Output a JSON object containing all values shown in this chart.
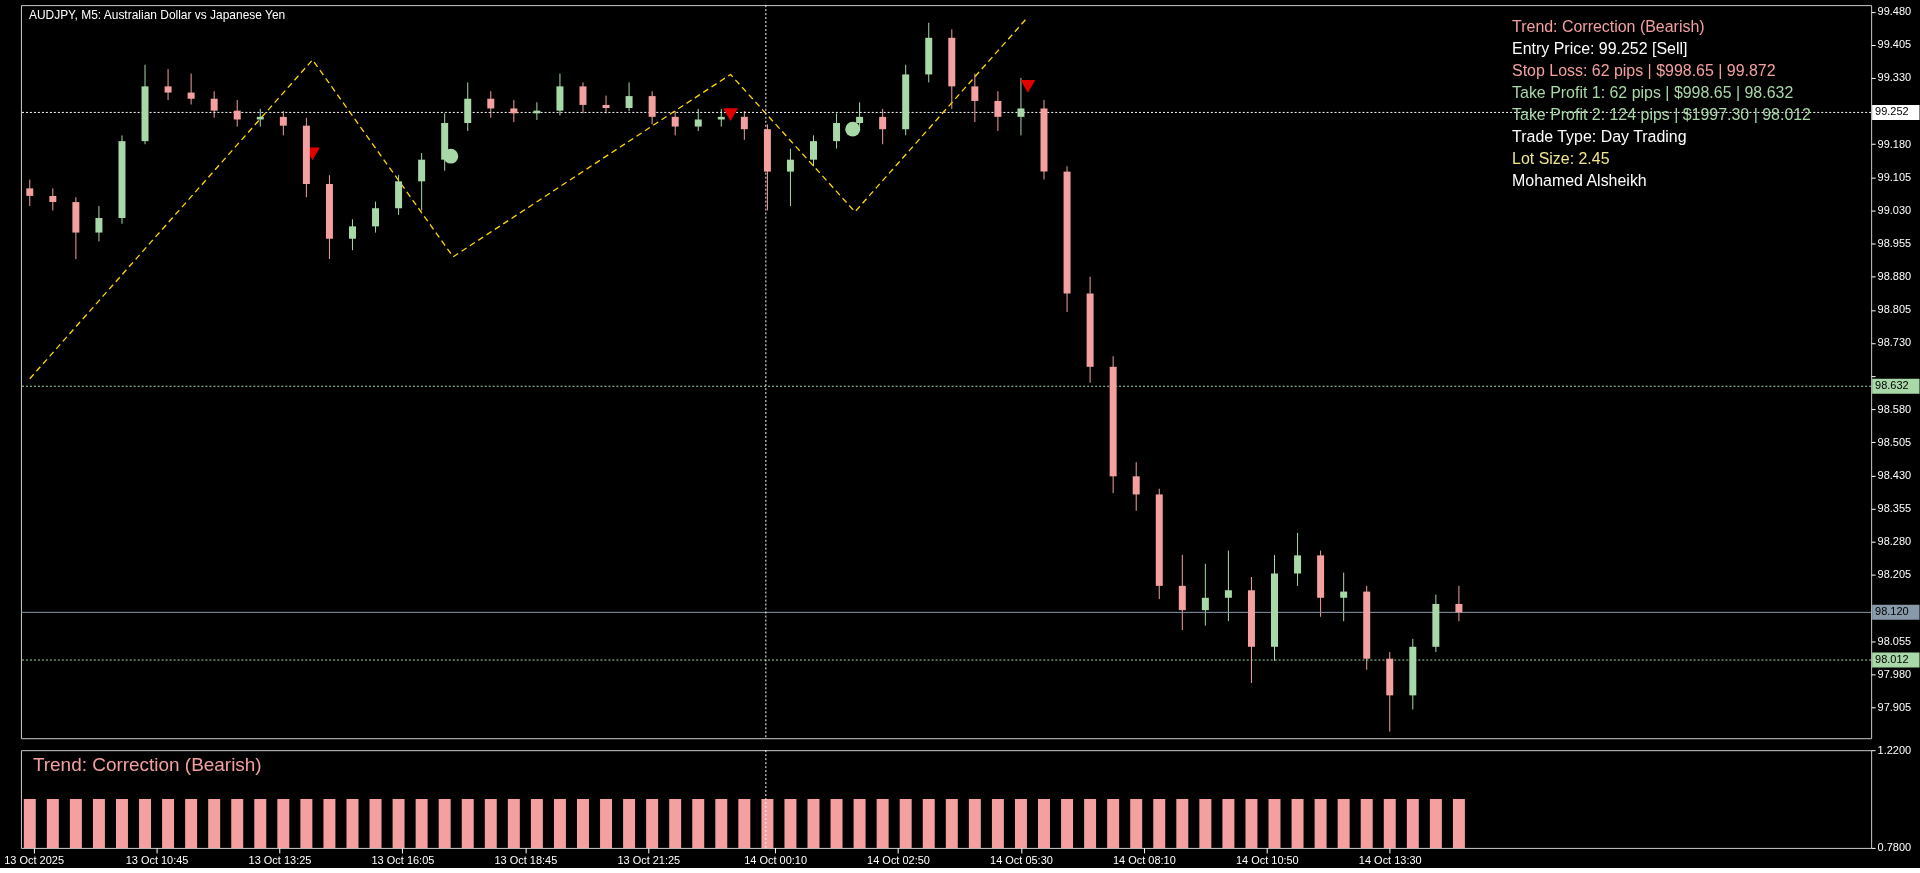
{
  "chart_data": [
    {
      "type": "candlestick",
      "title": "AUDJPY, M5:  Australian Dollar vs Japanese Yen",
      "x": [
        "2025-10-13T08:00",
        "2025-10-13T08:30",
        "2025-10-13T09:00",
        "2025-10-13T09:30",
        "2025-10-13T10:00",
        "2025-10-13T10:30",
        "2025-10-13T11:00",
        "2025-10-13T11:30",
        "2025-10-13T12:00",
        "2025-10-13T12:30",
        "2025-10-13T13:00",
        "2025-10-13T13:30",
        "2025-10-13T14:00",
        "2025-10-13T14:30",
        "2025-10-13T15:00",
        "2025-10-13T15:30",
        "2025-10-13T16:00",
        "2025-10-13T16:30",
        "2025-10-13T17:00",
        "2025-10-13T17:30",
        "2025-10-13T18:00",
        "2025-10-13T18:30",
        "2025-10-13T19:00",
        "2025-10-13T19:30",
        "2025-10-13T20:00",
        "2025-10-13T20:30",
        "2025-10-13T21:00",
        "2025-10-13T21:30",
        "2025-10-13T22:00",
        "2025-10-13T22:30",
        "2025-10-13T23:00",
        "2025-10-13T23:30",
        "2025-10-14T00:00",
        "2025-10-14T00:30",
        "2025-10-14T01:00",
        "2025-10-14T01:30",
        "2025-10-14T02:00",
        "2025-10-14T02:30",
        "2025-10-14T03:00",
        "2025-10-14T03:30",
        "2025-10-14T04:00",
        "2025-10-14T04:30",
        "2025-10-14T05:00",
        "2025-10-14T05:30",
        "2025-10-14T06:00",
        "2025-10-14T06:30",
        "2025-10-14T07:00",
        "2025-10-14T07:30",
        "2025-10-14T08:00",
        "2025-10-14T08:30",
        "2025-10-14T09:00",
        "2025-10-14T09:30",
        "2025-10-14T10:00",
        "2025-10-14T10:30",
        "2025-10-14T11:00",
        "2025-10-14T11:30",
        "2025-10-14T12:00",
        "2025-10-14T12:30",
        "2025-10-14T13:00",
        "2025-10-14T13:30",
        "2025-10-14T14:00",
        "2025-10-14T14:30",
        "2025-10-14T15:00"
      ],
      "ohlc": [
        [
          99.08,
          99.1,
          99.04,
          99.063
        ],
        [
          99.063,
          99.08,
          99.03,
          99.049
        ],
        [
          99.049,
          99.06,
          98.92,
          98.98
        ],
        [
          98.98,
          99.04,
          98.96,
          99.013
        ],
        [
          99.013,
          99.2,
          99.0,
          99.187
        ],
        [
          99.187,
          99.36,
          99.18,
          99.311
        ],
        [
          99.311,
          99.35,
          99.28,
          99.297
        ],
        [
          99.297,
          99.34,
          99.27,
          99.283
        ],
        [
          99.283,
          99.3,
          99.24,
          99.256
        ],
        [
          99.256,
          99.28,
          99.22,
          99.236
        ],
        [
          99.236,
          99.26,
          99.22,
          99.242
        ],
        [
          99.242,
          99.255,
          99.2,
          99.222
        ],
        [
          99.222,
          99.24,
          99.06,
          99.09
        ],
        [
          99.09,
          99.11,
          98.92,
          98.966
        ],
        [
          98.966,
          99.01,
          98.94,
          98.994
        ],
        [
          98.994,
          99.05,
          98.98,
          99.035
        ],
        [
          99.035,
          99.11,
          99.02,
          99.096
        ],
        [
          99.096,
          99.16,
          99.03,
          99.145
        ],
        [
          99.145,
          99.25,
          99.12,
          99.228
        ],
        [
          99.228,
          99.32,
          99.21,
          99.283
        ],
        [
          99.283,
          99.3,
          99.24,
          99.261
        ],
        [
          99.261,
          99.28,
          99.23,
          99.25
        ],
        [
          99.25,
          99.275,
          99.235,
          99.256
        ],
        [
          99.256,
          99.34,
          99.245,
          99.311
        ],
        [
          99.311,
          99.32,
          99.25,
          99.269
        ],
        [
          99.269,
          99.29,
          99.25,
          99.262
        ],
        [
          99.262,
          99.32,
          99.255,
          99.289
        ],
        [
          99.289,
          99.3,
          99.225,
          99.242
        ],
        [
          99.242,
          99.255,
          99.2,
          99.22
        ],
        [
          99.22,
          99.26,
          99.21,
          99.236
        ],
        [
          99.236,
          99.26,
          99.22,
          99.242
        ],
        [
          99.242,
          99.255,
          99.19,
          99.214
        ],
        [
          99.214,
          99.225,
          99.03,
          99.118
        ],
        [
          99.118,
          99.17,
          99.04,
          99.145
        ],
        [
          99.145,
          99.2,
          99.13,
          99.187
        ],
        [
          99.187,
          99.25,
          99.17,
          99.228
        ],
        [
          99.228,
          99.275,
          99.21,
          99.242
        ],
        [
          99.242,
          99.26,
          99.18,
          99.214
        ],
        [
          99.214,
          99.36,
          99.2,
          99.338
        ],
        [
          99.338,
          99.455,
          99.32,
          99.421
        ],
        [
          99.421,
          99.44,
          99.26,
          99.311
        ],
        [
          99.311,
          99.34,
          99.23,
          99.278
        ],
        [
          99.278,
          99.3,
          99.21,
          99.242
        ],
        [
          99.242,
          99.33,
          99.2,
          99.261
        ],
        [
          99.261,
          99.28,
          99.1,
          99.118
        ],
        [
          99.118,
          99.13,
          98.8,
          98.842
        ],
        [
          98.842,
          98.88,
          98.64,
          98.676
        ],
        [
          98.676,
          98.7,
          98.39,
          98.428
        ],
        [
          98.428,
          98.46,
          98.35,
          98.387
        ],
        [
          98.387,
          98.4,
          98.15,
          98.18
        ],
        [
          98.18,
          98.25,
          98.08,
          98.125
        ],
        [
          98.125,
          98.23,
          98.09,
          98.153
        ],
        [
          98.153,
          98.26,
          98.1,
          98.17
        ],
        [
          98.17,
          98.2,
          97.96,
          98.042
        ],
        [
          98.042,
          98.25,
          98.01,
          98.208
        ],
        [
          98.208,
          98.3,
          98.18,
          98.249
        ],
        [
          98.249,
          98.26,
          98.11,
          98.153
        ],
        [
          98.153,
          98.21,
          98.1,
          98.167
        ],
        [
          98.167,
          98.18,
          97.99,
          98.015
        ],
        [
          98.015,
          98.03,
          97.85,
          97.932
        ],
        [
          97.932,
          98.06,
          97.9,
          98.042
        ],
        [
          98.042,
          98.16,
          98.03,
          98.139
        ],
        [
          98.139,
          98.18,
          98.1,
          98.12
        ]
      ],
      "series": [
        {
          "type": "line",
          "color": "#ffd700",
          "line_style": "dashed",
          "x": [
            "2025-10-13T08:00",
            "2025-10-13T14:08",
            "2025-10-13T17:11",
            "2025-10-13T23:12",
            "2025-10-14T01:54",
            "2025-10-14T05:36"
          ],
          "values": [
            98.649,
            99.371,
            98.925,
            99.338,
            99.027,
            99.462
          ]
        },
        {
          "type": "scatter",
          "color": "#e00000",
          "marker": "triangle",
          "x": [
            "2025-10-13T14:08",
            "2025-10-13T23:12",
            "2025-10-14T05:39"
          ],
          "values": [
            99.158,
            99.247,
            99.311
          ]
        },
        {
          "type": "scatter",
          "color": "#a8d8a8",
          "marker": "circle",
          "x": [
            "2025-10-13T17:08",
            "2025-10-14T01:51"
          ],
          "values": [
            99.153,
            99.214
          ]
        }
      ],
      "xlim": [
        "2025-10-13T07:55",
        "2025-10-14T23:50"
      ],
      "ylim": [
        97.835,
        99.495
      ],
      "yticks": [
        {
          "value": 99.48,
          "label": "99.480"
        },
        {
          "value": 99.405,
          "label": "99.405"
        },
        {
          "value": 99.33,
          "label": "99.330"
        },
        {
          "value": 99.18,
          "label": "99.180"
        },
        {
          "value": 99.105,
          "label": "99.105"
        },
        {
          "value": 99.03,
          "label": "99.030"
        },
        {
          "value": 98.955,
          "label": "98.955"
        },
        {
          "value": 98.88,
          "label": "98.880"
        },
        {
          "value": 98.805,
          "label": "98.805"
        },
        {
          "value": 98.73,
          "label": "98.730"
        },
        {
          "value": 98.655,
          "label": null
        },
        {
          "value": 98.58,
          "label": "98.580"
        },
        {
          "value": 98.505,
          "label": "98.505"
        },
        {
          "value": 98.43,
          "label": "98.430"
        },
        {
          "value": 98.355,
          "label": "98.355"
        },
        {
          "value": 98.28,
          "label": "98.280"
        },
        {
          "value": 98.205,
          "label": "98.205"
        },
        {
          "value": 98.055,
          "label": "98.055"
        },
        {
          "value": 97.98,
          "label": "97.980"
        },
        {
          "value": 97.905,
          "label": "97.905"
        }
      ],
      "tick_labels": "y",
      "ref_lines": [
        {
          "axis": "y",
          "value": 99.252,
          "label": "99.252",
          "color": "#ffffff",
          "line_style": "dotted"
        },
        {
          "axis": "y",
          "value": 98.632,
          "label": "98.632",
          "color": "#a8d8a8",
          "line_style": "dotted"
        },
        {
          "axis": "y",
          "value": 98.12,
          "label": "98.120",
          "color": "#8899aa",
          "line_style": "solid"
        },
        {
          "axis": "y",
          "value": 98.012,
          "label": "98.012",
          "color": "#a8d8a8",
          "line_style": "dotted"
        },
        {
          "axis": "x",
          "value": "2025-10-13T23:58",
          "color": "#ffffff",
          "line_style": "dotted"
        }
      ],
      "annotations": [
        "Trend: Correction (Bearish)",
        "Entry Price: 99.252 [Sell]",
        "Stop Loss: 62 pips | $998.65 | 99.872",
        "Take Profit 1: 62 pips | $998.65 | 98.632",
        "Take Profit 2: 124 pips | $1997.30 | 98.012",
        "Trade Type: Day Trading",
        "Lot Size: 2.45",
        "Mohamed Alsheikh"
      ]
    },
    {
      "type": "bar",
      "color": "#f4a0a0",
      "x": [
        "2025-10-13T08:00",
        "2025-10-13T08:30",
        "2025-10-13T09:00",
        "2025-10-13T09:30",
        "2025-10-13T10:00",
        "2025-10-13T10:30",
        "2025-10-13T11:00",
        "2025-10-13T11:30",
        "2025-10-13T12:00",
        "2025-10-13T12:30",
        "2025-10-13T13:00",
        "2025-10-13T13:30",
        "2025-10-13T14:00",
        "2025-10-13T14:30",
        "2025-10-13T15:00",
        "2025-10-13T15:30",
        "2025-10-13T16:00",
        "2025-10-13T16:30",
        "2025-10-13T17:00",
        "2025-10-13T17:30",
        "2025-10-13T18:00",
        "2025-10-13T18:30",
        "2025-10-13T19:00",
        "2025-10-13T19:30",
        "2025-10-13T20:00",
        "2025-10-13T20:30",
        "2025-10-13T21:00",
        "2025-10-13T21:30",
        "2025-10-13T22:00",
        "2025-10-13T22:30",
        "2025-10-13T23:00",
        "2025-10-13T23:30",
        "2025-10-14T00:00",
        "2025-10-14T00:30",
        "2025-10-14T01:00",
        "2025-10-14T01:30",
        "2025-10-14T02:00",
        "2025-10-14T02:30",
        "2025-10-14T03:00",
        "2025-10-14T03:30",
        "2025-10-14T04:00",
        "2025-10-14T04:30",
        "2025-10-14T05:00",
        "2025-10-14T05:30",
        "2025-10-14T06:00",
        "2025-10-14T06:30",
        "2025-10-14T07:00",
        "2025-10-14T07:30",
        "2025-10-14T08:00",
        "2025-10-14T08:30",
        "2025-10-14T09:00",
        "2025-10-14T09:30",
        "2025-10-14T10:00",
        "2025-10-14T10:30",
        "2025-10-14T11:00",
        "2025-10-14T11:30",
        "2025-10-14T12:00",
        "2025-10-14T12:30",
        "2025-10-14T13:00",
        "2025-10-14T13:30",
        "2025-10-14T14:00",
        "2025-10-14T14:30",
        "2025-10-14T15:00"
      ],
      "values": [
        1,
        1,
        1,
        1,
        1,
        1,
        1,
        1,
        1,
        1,
        1,
        1,
        1,
        1,
        1,
        1,
        1,
        1,
        1,
        1,
        1,
        1,
        1,
        1,
        1,
        1,
        1,
        1,
        1,
        1,
        1,
        1,
        1,
        1,
        1,
        1,
        1,
        1,
        1,
        1,
        1,
        1,
        1,
        1,
        1,
        1,
        1,
        1,
        1,
        1,
        1,
        1,
        1,
        1,
        1,
        1,
        1,
        1,
        1,
        1,
        1,
        1,
        1
      ],
      "xlim": [
        "2025-10-13T07:55",
        "2025-10-14T23:50"
      ],
      "xticks": [
        {
          "value": "2025-10-13T08:05",
          "label": "13 Oct 2025"
        },
        {
          "value": "2025-10-13T10:45",
          "label": "13 Oct 10:45"
        },
        {
          "value": "2025-10-13T13:25",
          "label": "13 Oct 13:25"
        },
        {
          "value": "2025-10-13T16:05",
          "label": "13 Oct 16:05"
        },
        {
          "value": "2025-10-13T18:45",
          "label": "13 Oct 18:45"
        },
        {
          "value": "2025-10-13T21:25",
          "label": "13 Oct 21:25"
        },
        {
          "value": "2025-10-14T00:10",
          "label": "14 Oct 00:10"
        },
        {
          "value": "2025-10-14T02:50",
          "label": "14 Oct 02:50"
        },
        {
          "value": "2025-10-14T05:30",
          "label": "14 Oct 05:30"
        },
        {
          "value": "2025-10-14T08:10",
          "label": "14 Oct 08:10"
        },
        {
          "value": "2025-10-14T10:50",
          "label": "14 Oct 10:50"
        },
        {
          "value": "2025-10-14T13:30",
          "label": "14 Oct 13:30"
        }
      ],
      "ylim": [
        0.78,
        1.22
      ],
      "yticks": [
        {
          "value": 1.22,
          "label": "1.2200"
        },
        {
          "value": 0.78,
          "label": "0.7800"
        }
      ],
      "ref_lines": [
        {
          "axis": "x",
          "value": "2025-10-13T23:58",
          "color": "#ffffff",
          "line_style": "dotted"
        }
      ],
      "annotations": [
        "Trend: Correction (Bearish)"
      ]
    }
  ]
}
